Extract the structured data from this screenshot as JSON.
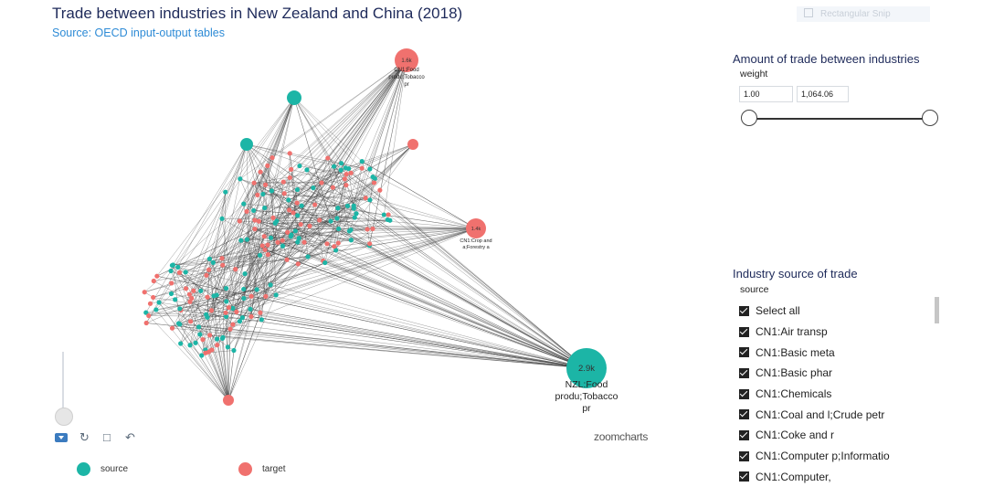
{
  "header": {
    "title": "Trade between industries in New Zealand and China (2018)",
    "subtitle": "Source: OECD input-output tables",
    "snip_label": "Rectangular Snip"
  },
  "network": {
    "nodes": [
      {
        "id": "nzl-food",
        "value_label": "2.9k",
        "caption": [
          "NZL:Food",
          "produ;Tobacco",
          "pr"
        ],
        "type": "source"
      },
      {
        "id": "cn1-food",
        "value_label": "1.6k",
        "caption": [
          "CN1:Food",
          "produ;Tobacco",
          "pr"
        ],
        "type": "target"
      },
      {
        "id": "cn1-crop",
        "value_label": "1.4k",
        "caption": [
          "CN1:Crop and",
          "a;Forestry a"
        ],
        "type": "target"
      }
    ],
    "logo": "zoomcharts",
    "colors": {
      "source": "#1cb5a6",
      "target": "#f0716e"
    },
    "icons": [
      "menu-icon",
      "refresh-icon",
      "unlock-icon",
      "back-icon"
    ]
  },
  "legend": [
    {
      "label": "source",
      "color": "#1cb5a6"
    },
    {
      "label": "target",
      "color": "#f0716e"
    }
  ],
  "weight_filter": {
    "title": "Amount of trade between industries",
    "label": "weight",
    "min": "1.00",
    "max": "1,064.06"
  },
  "source_filter": {
    "title": "Industry source of trade",
    "label": "source",
    "items": [
      "Select all",
      "CN1:Air transp",
      "CN1:Basic meta",
      "CN1:Basic phar",
      "CN1:Chemicals",
      "CN1:Coal and l;Crude petr",
      "CN1:Coke and r",
      "CN1:Computer p;Informatio",
      "CN1:Computer,"
    ]
  }
}
